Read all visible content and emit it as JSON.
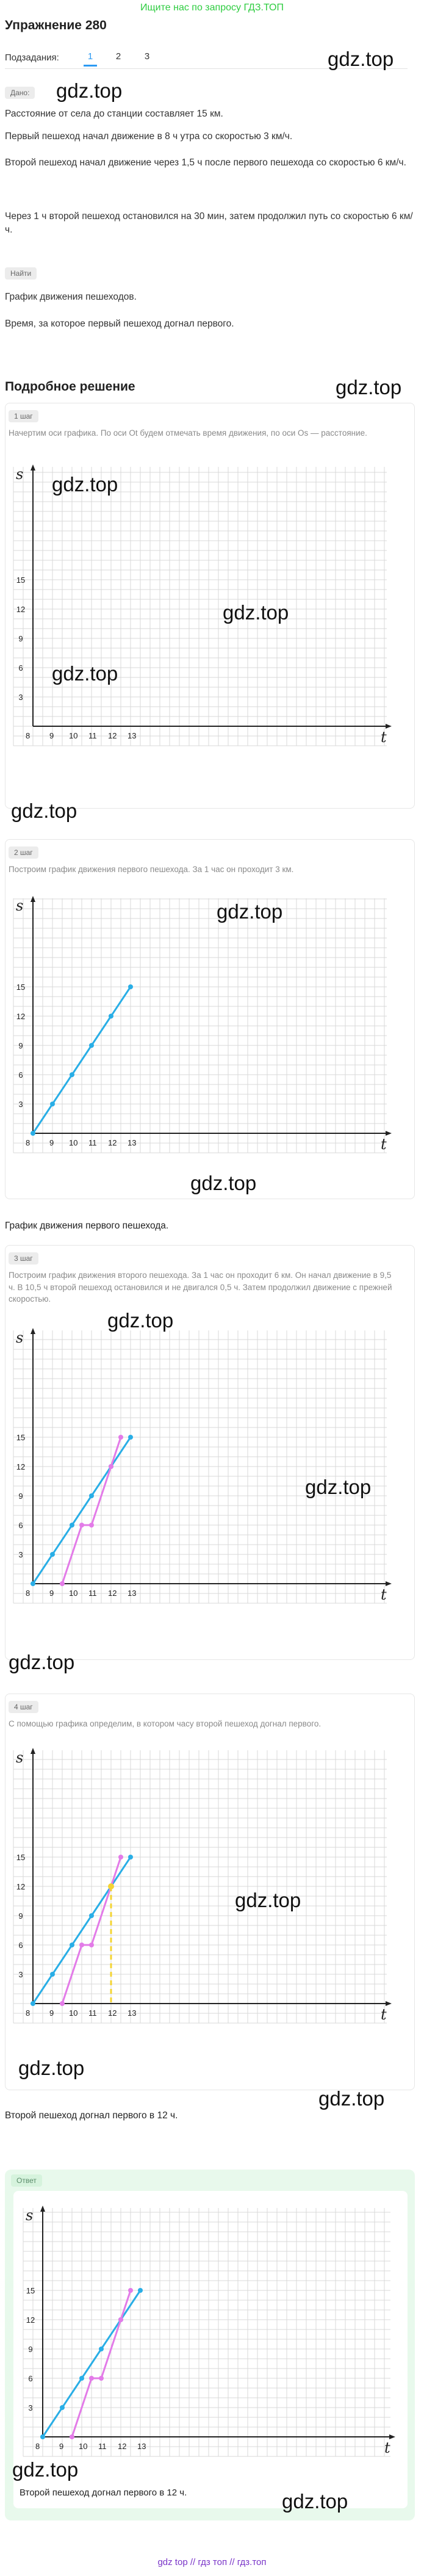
{
  "header": {
    "search_link": "Ищите нас по запросу ГДЗ.ТОП",
    "title": "Упражнение 280",
    "subtasks_label": "Подзадания:",
    "subtasks": [
      "1",
      "2",
      "3"
    ],
    "active_subtask": "1"
  },
  "watermark": "gdz.top",
  "given": {
    "tag": "Дано:",
    "lines": [
      "Расстояние от села до станции составляет 15 км.",
      "Первый пешеход начал движение в 8 ч утра со скоростью 3 км/ч.",
      "Второй пешеход начал движение через 1,5 ч после первого пешехода со скоростью 6 км/ч.",
      "Через 1 ч второй пешеход остановился на 30 мин, затем продолжил путь со скоростью 6 км/ч."
    ]
  },
  "find": {
    "tag": "Найти",
    "lines": [
      "График движения пешеходов.",
      "Время, за которое первый пешеход догнал первого."
    ]
  },
  "solution": {
    "title": "Подробное решение",
    "steps": [
      {
        "tag": "1 шаг",
        "text": "Начертим оси графика. По оси Ot будем отмечать время движения, по оси Os — расстояние."
      },
      {
        "tag": "2 шаг",
        "text": "Построим график движения первого пешехода. За 1 час он проходит 3 км.",
        "caption": "График движения первого пешехода."
      },
      {
        "tag": "3 шаг",
        "text": "Построим график движения второго пешехода. За 1 час он проходит 6 км. Он начал движение в 9,5 ч. В 10,5 ч второй пешеход остановился и не двигался 0,5 ч. Затем продолжил движение с прежней скоростью."
      },
      {
        "tag": "4 шаг",
        "text": "С помощью графика определим, в котором часу второй пешеход догнал первого.",
        "caption": "Второй пешеход догнал первого в 12 ч."
      }
    ]
  },
  "answer": {
    "tag": "Ответ",
    "text": "Второй пешеход догнал первого в 12 ч."
  },
  "footer": {
    "text": "gdz top // гдз топ // гдз.топ"
  },
  "chart_data": [
    {
      "type": "line",
      "title": "",
      "xlabel": "t",
      "ylabel": "s",
      "x_ticks": [
        "8",
        "9",
        "10",
        "11",
        "12",
        "13"
      ],
      "y_ticks": [
        "3",
        "6",
        "9",
        "12",
        "15"
      ],
      "xlim": [
        8,
        13.9
      ],
      "ylim": [
        0,
        18
      ],
      "series": []
    },
    {
      "type": "line",
      "xlabel": "t",
      "ylabel": "s",
      "x_ticks": [
        "8",
        "9",
        "10",
        "11",
        "12",
        "13"
      ],
      "y_ticks": [
        "3",
        "6",
        "9",
        "12",
        "15"
      ],
      "xlim": [
        8,
        13.9
      ],
      "ylim": [
        0,
        18
      ],
      "series": [
        {
          "color": "#29aee6",
          "x": [
            8,
            9,
            10,
            11,
            12,
            13
          ],
          "y": [
            0,
            3,
            6,
            9,
            12,
            15
          ]
        }
      ]
    },
    {
      "type": "line",
      "xlabel": "t",
      "ylabel": "s",
      "x_ticks": [
        "8",
        "9",
        "10",
        "11",
        "12",
        "13"
      ],
      "y_ticks": [
        "3",
        "6",
        "9",
        "12",
        "15"
      ],
      "xlim": [
        8,
        13.9
      ],
      "ylim": [
        0,
        18
      ],
      "series": [
        {
          "color": "#29aee6",
          "x": [
            8,
            9,
            10,
            11,
            12,
            13
          ],
          "y": [
            0,
            3,
            6,
            9,
            12,
            15
          ]
        },
        {
          "color": "#e37be8",
          "x": [
            9.5,
            10.5,
            11,
            12,
            12.5
          ],
          "y": [
            0,
            6,
            6,
            12,
            15
          ]
        }
      ]
    },
    {
      "type": "line",
      "xlabel": "t",
      "ylabel": "s",
      "x_ticks": [
        "8",
        "9",
        "10",
        "11",
        "12",
        "13"
      ],
      "y_ticks": [
        "3",
        "6",
        "9",
        "12",
        "15"
      ],
      "xlim": [
        8,
        13.9
      ],
      "ylim": [
        0,
        18
      ],
      "meeting_point": {
        "x": 12,
        "y": 12,
        "color": "#f4d433"
      },
      "series": [
        {
          "color": "#29aee6",
          "x": [
            8,
            9,
            10,
            11,
            12,
            13
          ],
          "y": [
            0,
            3,
            6,
            9,
            12,
            15
          ]
        },
        {
          "color": "#e37be8",
          "x": [
            9.5,
            10.5,
            11,
            12,
            12.5
          ],
          "y": [
            0,
            6,
            6,
            12,
            15
          ]
        }
      ]
    },
    {
      "type": "line",
      "xlabel": "t",
      "ylabel": "s",
      "x_ticks": [
        "8",
        "9",
        "10",
        "11",
        "12",
        "13"
      ],
      "y_ticks": [
        "3",
        "6",
        "9",
        "12",
        "15"
      ],
      "xlim": [
        8,
        13.9
      ],
      "ylim": [
        0,
        18
      ],
      "series": [
        {
          "color": "#29aee6",
          "x": [
            8,
            9,
            10,
            11,
            12,
            13
          ],
          "y": [
            0,
            3,
            6,
            9,
            12,
            15
          ]
        },
        {
          "color": "#e37be8",
          "x": [
            9.5,
            10.5,
            11,
            12,
            12.5
          ],
          "y": [
            0,
            6,
            6,
            12,
            15
          ]
        }
      ]
    }
  ]
}
